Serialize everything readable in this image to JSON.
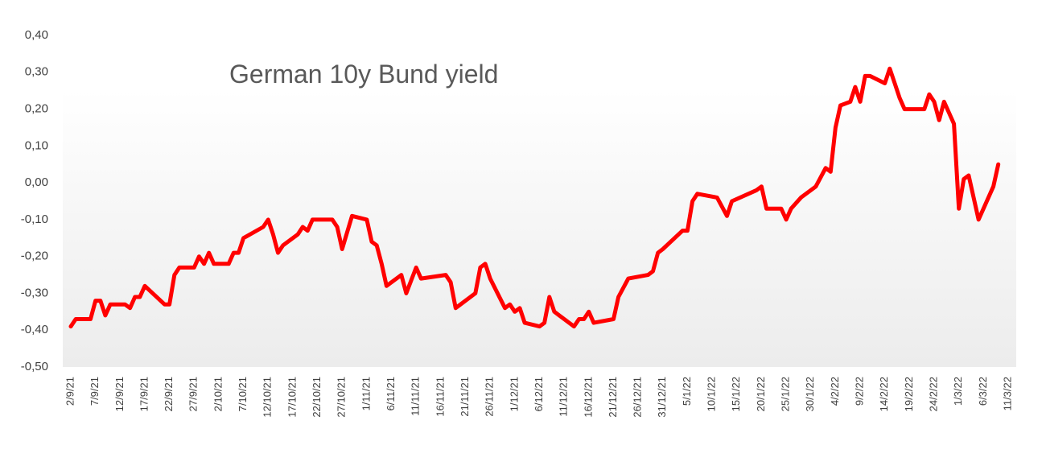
{
  "chart_data": {
    "type": "line",
    "title": "German 10y Bund yield",
    "x": [
      "2/9/21",
      "3/9/21",
      "6/9/21",
      "7/9/21",
      "8/9/21",
      "9/9/21",
      "10/9/21",
      "13/9/21",
      "14/9/21",
      "15/9/21",
      "16/9/21",
      "17/9/21",
      "21/9/21",
      "22/9/21",
      "23/9/21",
      "24/9/21",
      "27/9/21",
      "28/9/21",
      "29/9/21",
      "30/9/21",
      "1/10/21",
      "4/10/21",
      "5/10/21",
      "6/10/21",
      "7/10/21",
      "11/10/21",
      "12/10/21",
      "13/10/21",
      "14/10/21",
      "15/10/21",
      "18/10/21",
      "19/10/21",
      "20/10/21",
      "21/10/21",
      "25/10/21",
      "26/10/21",
      "27/10/21",
      "29/10/21",
      "1/11/21",
      "2/11/21",
      "3/11/21",
      "4/11/21",
      "5/11/21",
      "8/11/21",
      "9/11/21",
      "11/11/21",
      "12/11/21",
      "17/11/21",
      "18/11/21",
      "19/11/21",
      "23/11/21",
      "24/11/21",
      "25/11/21",
      "26/11/21",
      "29/11/21",
      "30/11/21",
      "1/12/21",
      "2/12/21",
      "3/12/21",
      "6/12/21",
      "7/12/21",
      "8/12/21",
      "9/12/21",
      "10/12/21",
      "13/12/21",
      "14/12/21",
      "15/12/21",
      "16/12/21",
      "17/12/21",
      "21/12/21",
      "22/12/21",
      "24/12/21",
      "28/12/21",
      "29/12/21",
      "30/12/21",
      "31/12/21",
      "4/1/22",
      "5/1/22",
      "6/1/22",
      "7/1/22",
      "11/1/22",
      "13/1/22",
      "14/1/22",
      "19/1/22",
      "20/1/22",
      "21/1/22",
      "24/1/22",
      "25/1/22",
      "26/1/22",
      "28/1/22",
      "31/1/22",
      "2/2/22",
      "3/2/22",
      "4/2/22",
      "5/2/22",
      "7/2/22",
      "8/2/22",
      "9/2/22",
      "10/2/22",
      "11/2/22",
      "14/2/22",
      "15/2/22",
      "16/2/22",
      "17/2/22",
      "18/2/22",
      "22/2/22",
      "23/2/22",
      "24/2/22",
      "25/2/22",
      "26/2/22",
      "28/2/22",
      "1/3/22",
      "2/3/22",
      "3/3/22",
      "5/3/22",
      "8/3/22",
      "9/3/22"
    ],
    "values": [
      -0.39,
      -0.37,
      -0.37,
      -0.32,
      -0.32,
      -0.36,
      -0.33,
      -0.33,
      -0.34,
      -0.31,
      -0.31,
      -0.28,
      -0.33,
      -0.33,
      -0.25,
      -0.23,
      -0.23,
      -0.2,
      -0.22,
      -0.19,
      -0.22,
      -0.22,
      -0.19,
      -0.19,
      -0.15,
      -0.12,
      -0.1,
      -0.14,
      -0.19,
      -0.17,
      -0.14,
      -0.12,
      -0.13,
      -0.1,
      -0.1,
      -0.12,
      -0.18,
      -0.09,
      -0.1,
      -0.16,
      -0.17,
      -0.22,
      -0.28,
      -0.25,
      -0.3,
      -0.23,
      -0.26,
      -0.25,
      -0.27,
      -0.34,
      -0.3,
      -0.23,
      -0.22,
      -0.26,
      -0.34,
      -0.33,
      -0.35,
      -0.34,
      -0.38,
      -0.39,
      -0.38,
      -0.31,
      -0.35,
      -0.36,
      -0.39,
      -0.37,
      -0.37,
      -0.35,
      -0.38,
      -0.37,
      -0.31,
      -0.26,
      -0.25,
      -0.24,
      -0.19,
      -0.18,
      -0.13,
      -0.13,
      -0.05,
      -0.03,
      -0.04,
      -0.09,
      -0.05,
      -0.02,
      -0.01,
      -0.07,
      -0.07,
      -0.1,
      -0.07,
      -0.04,
      -0.01,
      0.04,
      0.03,
      0.15,
      0.21,
      0.22,
      0.26,
      0.22,
      0.29,
      0.29,
      0.27,
      0.31,
      0.27,
      0.23,
      0.2,
      0.2,
      0.24,
      0.22,
      0.17,
      0.22,
      0.16,
      -0.07,
      0.01,
      0.02,
      -0.1,
      -0.01,
      0.05
    ],
    "color": "#ff0000",
    "xlim": [
      "2/9/21",
      "11/3/22"
    ],
    "xticks": [
      "2/9/21",
      "7/9/21",
      "12/9/21",
      "17/9/21",
      "22/9/21",
      "27/9/21",
      "2/10/21",
      "7/10/21",
      "12/10/21",
      "17/10/21",
      "22/10/21",
      "27/10/21",
      "1/11/21",
      "6/11/21",
      "11/11/21",
      "16/11/21",
      "21/11/21",
      "26/11/21",
      "1/12/21",
      "6/12/21",
      "11/12/21",
      "16/12/21",
      "21/12/21",
      "26/12/21",
      "31/12/21",
      "5/1/22",
      "10/1/22",
      "15/1/22",
      "20/1/22",
      "25/1/22",
      "30/1/22",
      "4/2/22",
      "9/2/22",
      "14/2/22",
      "19/2/22",
      "24/2/22",
      "1/3/22",
      "6/3/22",
      "11/3/22"
    ],
    "ylim": [
      -0.5,
      0.4
    ],
    "yticks": [
      {
        "value": -0.5,
        "label": "-0,50"
      },
      {
        "value": -0.4,
        "label": "-0,40"
      },
      {
        "value": -0.3,
        "label": "-0,30"
      },
      {
        "value": -0.2,
        "label": "-0,20"
      },
      {
        "value": -0.1,
        "label": "-0,10"
      },
      {
        "value": 0,
        "label": "0,00"
      },
      {
        "value": 0.1,
        "label": "0,10"
      },
      {
        "value": 0.2,
        "label": "0,20"
      },
      {
        "value": 0.3,
        "label": "0,30"
      },
      {
        "value": 0.4,
        "label": "0,40"
      }
    ]
  }
}
